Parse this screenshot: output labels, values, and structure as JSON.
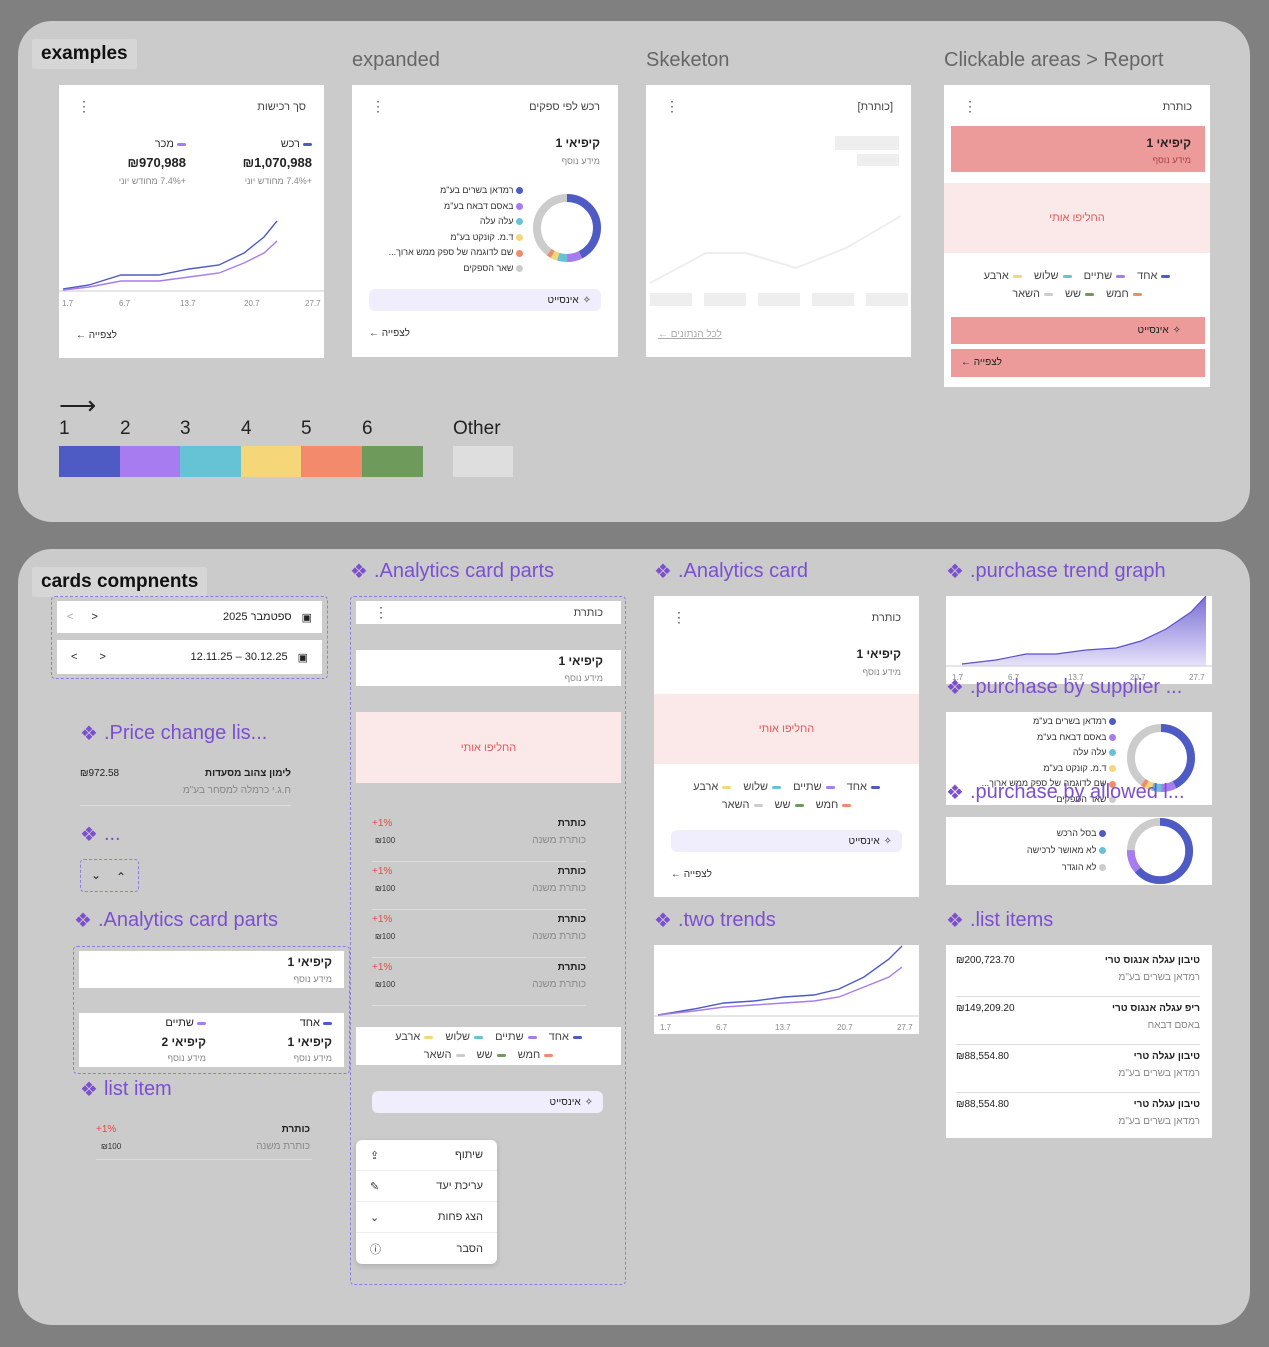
{
  "panel1": {
    "title": "examples"
  },
  "sections": {
    "expanded": "expanded",
    "skeleton": "Skeketon",
    "clickable": "Clickable areas > Report"
  },
  "card1": {
    "title": "סך רכישות",
    "leg1": "רכש",
    "leg2": "מכר",
    "val1": "₪1,070,988",
    "val2": "₪970,988",
    "delta1": "+7.4% מחודש יוני",
    "delta2": "+7.4% מחודש יוני",
    "ticks": [
      "1.7",
      "6.7",
      "13.7",
      "20.7",
      "27.7"
    ],
    "back": "לצפייה"
  },
  "card2": {
    "title": "רכש לפי ספקים",
    "kpi": "קיפיאי 1",
    "info": "מידע נוסף",
    "legend": [
      "רמדאן בשרים בע\"מ",
      "באסם דבאח בע\"מ",
      "עלה עלה",
      "ד.מ. קונקט בע\"מ",
      "שם לדוגמה של ספק ממש ארוך...",
      "שאר הספקים"
    ],
    "insight": "אינסייט",
    "back": "לצפייה"
  },
  "card3": {
    "title": "[כותרת]",
    "back": "לכל הנתונים"
  },
  "card4": {
    "title": "כותרת",
    "kpi": "קיפיאי 1",
    "info": "מידע נוסף",
    "replace": "החליפו אותי",
    "legend1": [
      "אחד",
      "שתיים",
      "שלוש",
      "ארבע"
    ],
    "legend2": [
      "חמש",
      "שש",
      "השאר"
    ],
    "insight": "אינסייט",
    "back": "לצפייה"
  },
  "palette": {
    "labels": [
      "1",
      "2",
      "3",
      "4",
      "5",
      "6"
    ],
    "other": "Other",
    "colors": [
      "#4f5bc4",
      "#a67cf0",
      "#66c3d6",
      "#f5d77a",
      "#f38a6c",
      "#6e9a5c"
    ],
    "other_color": "#dedede"
  },
  "panel2": {
    "title": "cards compnents"
  },
  "dates": {
    "month": "ספטמבר 2025",
    "range": "12.11.25 – 30.12.25"
  },
  "names": {
    "price": ".Price change lis...",
    "dots": "...",
    "acp_left": ".Analytics card parts",
    "list_item": "list item",
    "acp_mid": ".Analytics card parts",
    "ac": ".Analytics card",
    "two": ".two trends",
    "ptg": ".purchase trend graph",
    "pbs": ".purchase by supplier ...",
    "pba": ".purchase by allowed l...",
    "li": ".list items"
  },
  "price_item": {
    "title": "לימון צהוב מסעדות",
    "sub": "ח.ג.י כרמלה למסחר בע\"מ",
    "value": "₪972.58"
  },
  "acp_left": {
    "kpi": "קיפיאי 1",
    "info": "מידע נוסף",
    "a": "אחד",
    "b": "שתיים",
    "kpi2": "קיפיאי 1",
    "kpi3": "קיפיאי 2",
    "info2": "מידע נוסף",
    "info3": "מידע נוסף"
  },
  "list_item": {
    "title": "כותרת",
    "sub": "כותרת משנה",
    "pct": "+1%",
    "val": "₪100"
  },
  "acp_mid": {
    "title": "כותרת",
    "kpi": "קיפיאי 1",
    "info": "מידע נוסף",
    "replace": "החליפו אותי",
    "rows": [
      {
        "title": "כותרת",
        "sub": "כותרת משנה",
        "pct": "+1%",
        "val": "₪100"
      },
      {
        "title": "כותרת",
        "sub": "כותרת משנה",
        "pct": "+1%",
        "val": "₪100"
      },
      {
        "title": "כותרת",
        "sub": "כותרת משנה",
        "pct": "+1%",
        "val": "₪100"
      },
      {
        "title": "כותרת",
        "sub": "כותרת משנה",
        "pct": "+1%",
        "val": "₪100"
      }
    ],
    "legend1": [
      "אחד",
      "שתיים",
      "שלוש",
      "ארבע"
    ],
    "legend2": [
      "חמש",
      "שש",
      "השאר"
    ],
    "insight": "אינסייט",
    "menu": [
      "שיתוף",
      "עריכת יעד",
      "הצג פחות",
      "הסבר"
    ]
  },
  "ac": {
    "title": "כותרת",
    "kpi": "קיפיאי 1",
    "info": "מידע נוסף",
    "replace": "החליפו אותי",
    "legend1": [
      "אחד",
      "שתיים",
      "שלוש",
      "ארבע"
    ],
    "legend2": [
      "חמש",
      "שש",
      "השאר"
    ],
    "insight": "אינסייט",
    "back": "לצפייה"
  },
  "ptg": {
    "ticks": [
      "1.7",
      "6.7",
      "13.7",
      "20.7",
      "27.7"
    ]
  },
  "two": {
    "ticks": [
      "1.7",
      "6.7",
      "13.7",
      "20.7",
      "27.7"
    ]
  },
  "pbs": {
    "legend": [
      "רמדאן בשרים בע\"מ",
      "באסם דבאח בע\"מ",
      "עלה עלה",
      "ד.מ. קונקט בע\"מ",
      "שם לדוגמה של ספק ממש ארוך...",
      "שאר הספקים"
    ]
  },
  "pba": {
    "legend": [
      "בסל הרכש",
      "לא מאושר לרכישה",
      "לא הוגדר"
    ]
  },
  "list_items": [
    {
      "title": "טיבון עגלה אנגוס טרי",
      "sub": "רמדאן בשרים בע\"מ",
      "val": "₪200,723.70"
    },
    {
      "title": "ריפ עגלה אנגוס טרי",
      "sub": "באסם דבאח",
      "val": "₪149,209.20"
    },
    {
      "title": "טיבון עגלה טרי",
      "sub": "רמדאן בשרים בע\"מ",
      "val": "₪88,554.80"
    },
    {
      "title": "טיבון עגלה טרי",
      "sub": "רמדאן בשרים בע\"מ",
      "val": "₪88,554.80"
    }
  ]
}
